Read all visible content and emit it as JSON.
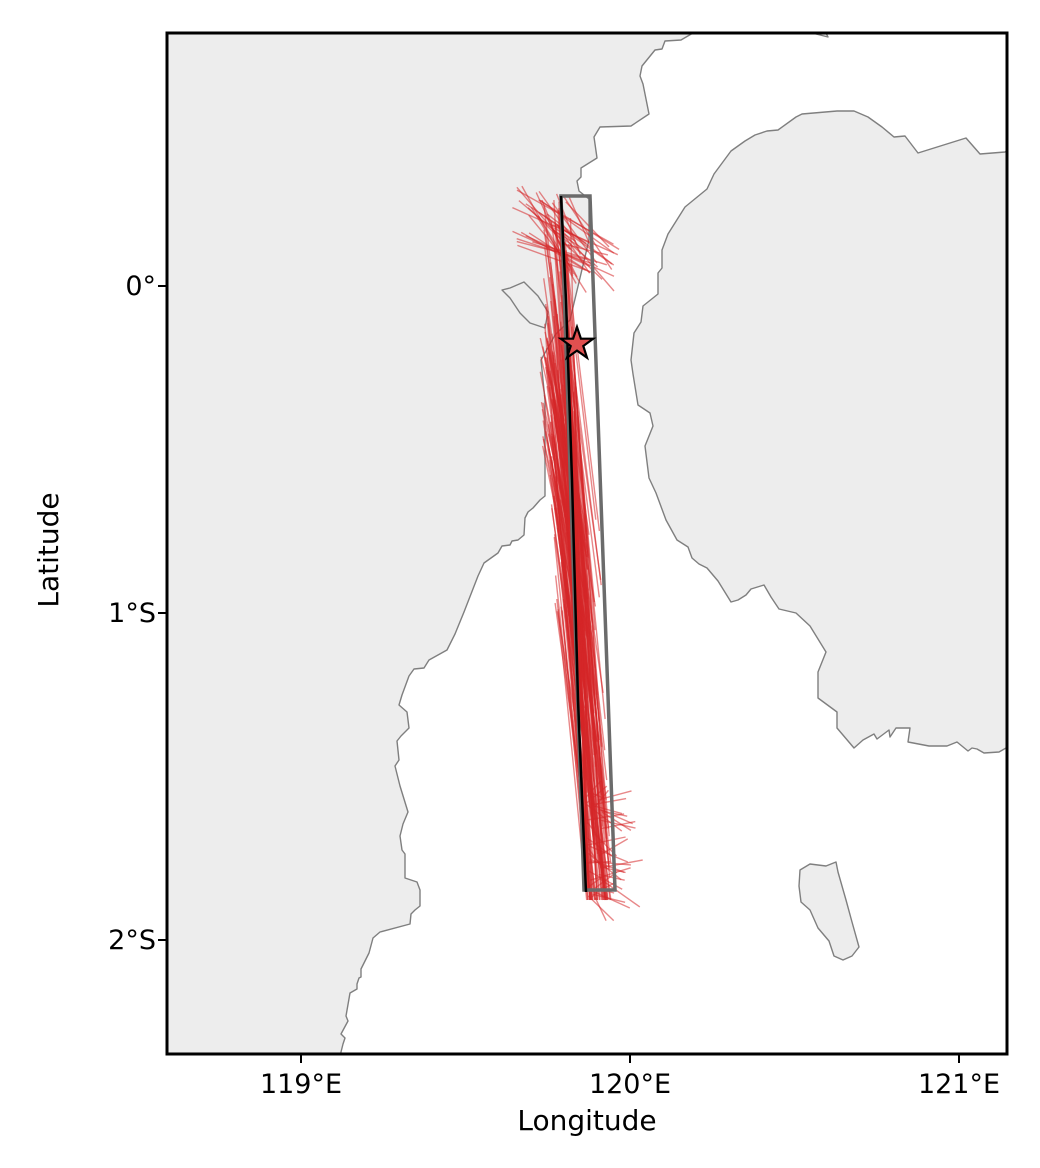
{
  "map": {
    "xlabel": "Longitude",
    "ylabel": "Latitude",
    "x_ticks": [
      {
        "value": 119,
        "label": "119°E"
      },
      {
        "value": 120,
        "label": "120°E"
      },
      {
        "value": 121,
        "label": "121°E"
      }
    ],
    "y_ticks": [
      {
        "value": 0,
        "label": "0°"
      },
      {
        "value": -1,
        "label": "1°S"
      },
      {
        "value": -2,
        "label": "2°S"
      }
    ],
    "extent": {
      "lon": [
        118.59,
        121.15
      ],
      "lat": [
        -2.35,
        0.77
      ]
    },
    "land_color": "#ededed",
    "coast_color": "#7f7f7f",
    "rupture_color": "#d62728"
  },
  "chart_data": {
    "type": "map",
    "projection": "PlateCarree",
    "grid": false,
    "epicenter": {
      "lon": 119.84,
      "lat": -0.18,
      "marker": "star"
    },
    "fault_plane": {
      "corners": [
        [
          119.78,
          0.27
        ],
        [
          119.87,
          0.27
        ],
        [
          119.95,
          -1.85
        ],
        [
          119.86,
          -1.85
        ]
      ],
      "trace": [
        [
          119.78,
          0.27
        ],
        [
          119.86,
          -1.85
        ]
      ]
    },
    "rupture_lines": {
      "lon_range": [
        119.63,
        120.0
      ],
      "lat_range": [
        -1.9,
        0.3
      ],
      "color": "#d62728"
    }
  }
}
